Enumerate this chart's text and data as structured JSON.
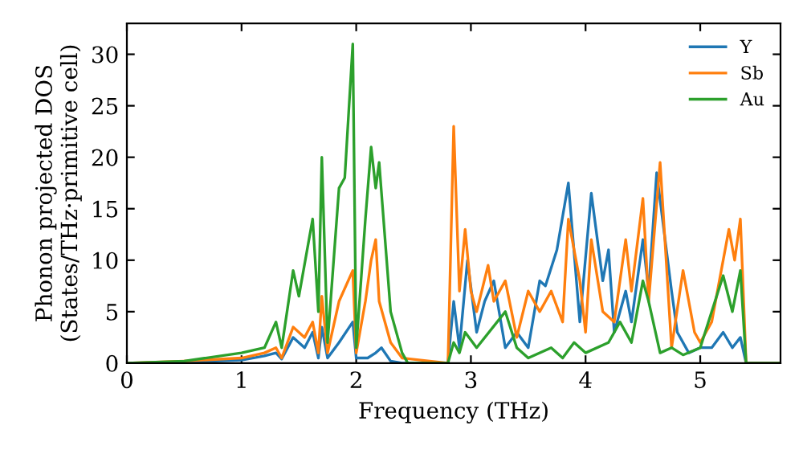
{
  "chart_data": {
    "type": "line",
    "xlabel": "Frequency (THz)",
    "ylabel": "Phonon projected DOS\n(States/THz·primitive cell)",
    "xlim": [
      0,
      5.7
    ],
    "ylim": [
      0,
      33
    ],
    "xticks": [
      0,
      1,
      2,
      3,
      4,
      5
    ],
    "yticks": [
      0,
      5,
      10,
      15,
      20,
      25,
      30
    ],
    "grid": false,
    "legend": "top right",
    "series": [
      {
        "name": "Y",
        "color": "#1f77b4",
        "x": [
          0,
          0.5,
          1.0,
          1.2,
          1.3,
          1.35,
          1.45,
          1.55,
          1.62,
          1.67,
          1.7,
          1.75,
          1.85,
          1.97,
          2.0,
          2.1,
          2.17,
          2.22,
          2.3,
          2.4,
          2.8,
          2.85,
          2.9,
          2.97,
          3.05,
          3.12,
          3.2,
          3.3,
          3.4,
          3.5,
          3.6,
          3.65,
          3.75,
          3.85,
          3.95,
          4.05,
          4.15,
          4.2,
          4.25,
          4.35,
          4.4,
          4.5,
          4.55,
          4.62,
          4.75,
          4.8,
          4.9,
          5.0,
          5.1,
          5.2,
          5.28,
          5.35,
          5.4,
          5.7
        ],
        "values": [
          0,
          0.1,
          0.3,
          0.7,
          1,
          0.4,
          2.5,
          1.5,
          3,
          0.5,
          3.5,
          0.5,
          2,
          4,
          0.5,
          0.5,
          1,
          1.5,
          0.2,
          0,
          0,
          6,
          1.5,
          10,
          3,
          6,
          8,
          1.5,
          3,
          1.5,
          8,
          7.5,
          11,
          17.5,
          4,
          16.5,
          8,
          11,
          3,
          7,
          4,
          12,
          7,
          18.5,
          7,
          3,
          1,
          1.5,
          1.5,
          3,
          1.5,
          2.5,
          0,
          0
        ]
      },
      {
        "name": "Sb",
        "color": "#ff7f0e",
        "x": [
          0,
          0.5,
          1.0,
          1.2,
          1.3,
          1.35,
          1.45,
          1.55,
          1.62,
          1.67,
          1.7,
          1.75,
          1.85,
          1.97,
          2.0,
          2.08,
          2.13,
          2.17,
          2.2,
          2.3,
          2.4,
          2.8,
          2.85,
          2.9,
          2.95,
          3.0,
          3.05,
          3.15,
          3.2,
          3.3,
          3.4,
          3.5,
          3.6,
          3.7,
          3.8,
          3.85,
          3.95,
          4.0,
          4.05,
          4.15,
          4.25,
          4.35,
          4.4,
          4.5,
          4.55,
          4.65,
          4.75,
          4.85,
          4.95,
          5.0,
          5.1,
          5.25,
          5.3,
          5.35,
          5.4,
          5.7
        ],
        "values": [
          0,
          0.2,
          0.5,
          1,
          1.5,
          0.5,
          3.5,
          2.5,
          4,
          1,
          6.5,
          1,
          6,
          9,
          1,
          6,
          10,
          12,
          6,
          2,
          0.5,
          0,
          23,
          7,
          13,
          7,
          5,
          9.5,
          6,
          8,
          2.5,
          7,
          5,
          7,
          4,
          14,
          8,
          3,
          12,
          5,
          4,
          12,
          7,
          16,
          6,
          19.5,
          1.5,
          9,
          3,
          2,
          4,
          13,
          10,
          14,
          0,
          0
        ]
      },
      {
        "name": "Au",
        "color": "#2ca02c",
        "x": [
          0,
          0.5,
          1.0,
          1.2,
          1.3,
          1.35,
          1.45,
          1.5,
          1.62,
          1.67,
          1.7,
          1.75,
          1.85,
          1.9,
          1.97,
          2.0,
          2.08,
          2.13,
          2.17,
          2.2,
          2.3,
          2.4,
          2.45,
          2.8,
          2.85,
          2.9,
          2.95,
          3.05,
          3.3,
          3.4,
          3.5,
          3.7,
          3.8,
          3.9,
          4.0,
          4.2,
          4.3,
          4.4,
          4.5,
          4.55,
          4.65,
          4.75,
          4.85,
          5.0,
          5.1,
          5.2,
          5.28,
          5.35,
          5.4,
          5.7
        ],
        "values": [
          0,
          0.2,
          1,
          1.5,
          4,
          1.5,
          9,
          6.5,
          14,
          5,
          20,
          2,
          17,
          18,
          31,
          1.5,
          14,
          21,
          17,
          19.5,
          5,
          1,
          0,
          0,
          2,
          1,
          3,
          1.5,
          5,
          1.5,
          0.5,
          1.5,
          0.5,
          2,
          1,
          2,
          4,
          2,
          8,
          6,
          1,
          1.5,
          0.8,
          1.5,
          5,
          8.5,
          5,
          9,
          0,
          0
        ]
      }
    ]
  }
}
